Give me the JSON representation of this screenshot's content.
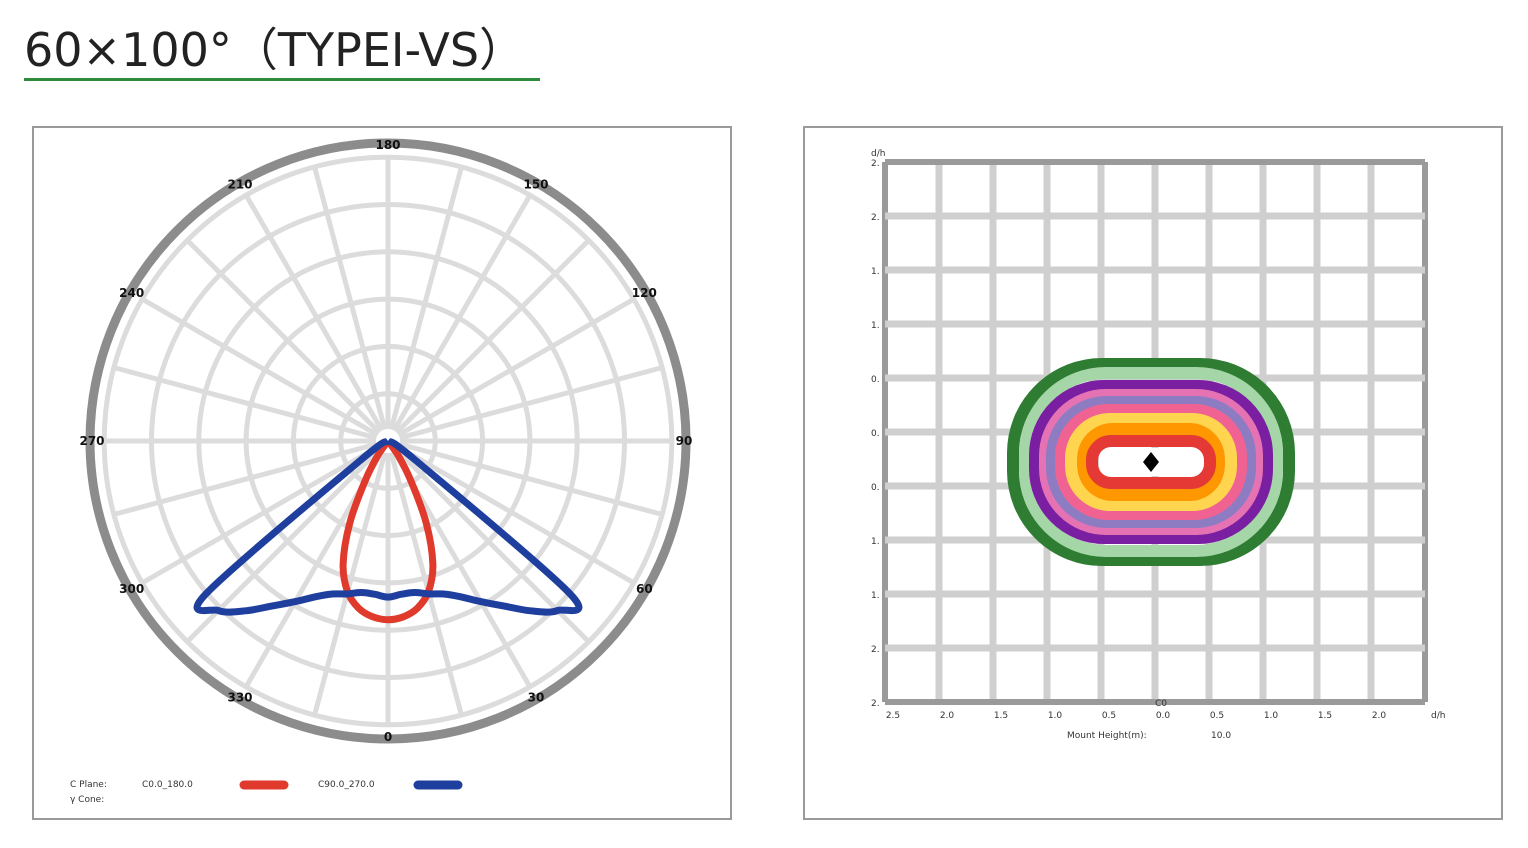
{
  "header": {
    "title": "60×100°（TYPEⅠ-VS）"
  },
  "chart_data": [
    {
      "type": "polar",
      "angle_labels": [
        "180",
        "150",
        "120",
        "90",
        "60",
        "30",
        "0",
        "330",
        "300",
        "270",
        "240",
        "210"
      ],
      "legend": {
        "c_plane_label": "C Plane:",
        "gamma_label": "γ Cone:",
        "series_names": [
          "C0.0_180.0",
          "C90.0_270.0"
        ]
      },
      "series": [
        {
          "name": "C0.0_180.0",
          "color": "#e03a2c",
          "gamma_deg": [
            -35,
            -30,
            -25,
            -20,
            -15,
            -10,
            -5,
            0,
            5,
            10,
            15,
            20,
            25,
            30,
            35
          ],
          "relative_intensity": [
            0.08,
            0.2,
            0.4,
            0.58,
            0.69,
            0.75,
            0.78,
            0.79,
            0.78,
            0.75,
            0.69,
            0.58,
            0.4,
            0.2,
            0.08
          ]
        },
        {
          "name": "C90.0_270.0",
          "color": "#1f3f9e",
          "gamma_deg": [
            -55,
            -50,
            -45,
            -40,
            -35,
            -30,
            -25,
            -20,
            -15,
            -10,
            -5,
            0,
            5,
            10,
            15,
            20,
            25,
            30,
            35,
            40,
            45,
            50,
            55
          ],
          "relative_intensity": [
            0.15,
            1.05,
            1.06,
            0.98,
            0.89,
            0.82,
            0.76,
            0.72,
            0.7,
            0.68,
            0.68,
            0.69,
            0.68,
            0.68,
            0.7,
            0.72,
            0.76,
            0.82,
            0.89,
            0.98,
            1.06,
            1.05,
            0.15
          ]
        }
      ]
    },
    {
      "type": "isolux",
      "x_axis_label": "d/h",
      "y_axis_label": "d/h",
      "x_tick_labels": [
        "2.5",
        "2.0",
        "1.5",
        "1.0",
        "0.5",
        "0.0",
        "0.5",
        "1.0",
        "1.5",
        "2.0"
      ],
      "y_tick_labels": [
        "2.",
        "2.",
        "1.",
        "1.",
        "0.",
        "0.",
        "0.",
        "1.",
        "1.",
        "2.",
        "2."
      ],
      "plane_label": "C0",
      "mount_height_label": "Mount Height(m):",
      "mount_height_value": "10.0",
      "contour_colors": [
        "#2e7d32",
        "#a5d6a7",
        "#7b1fa2",
        "#e573b4",
        "#8e7cc3",
        "#f06292",
        "#ffd54f",
        "#ff9800",
        "#e53935"
      ]
    }
  ]
}
